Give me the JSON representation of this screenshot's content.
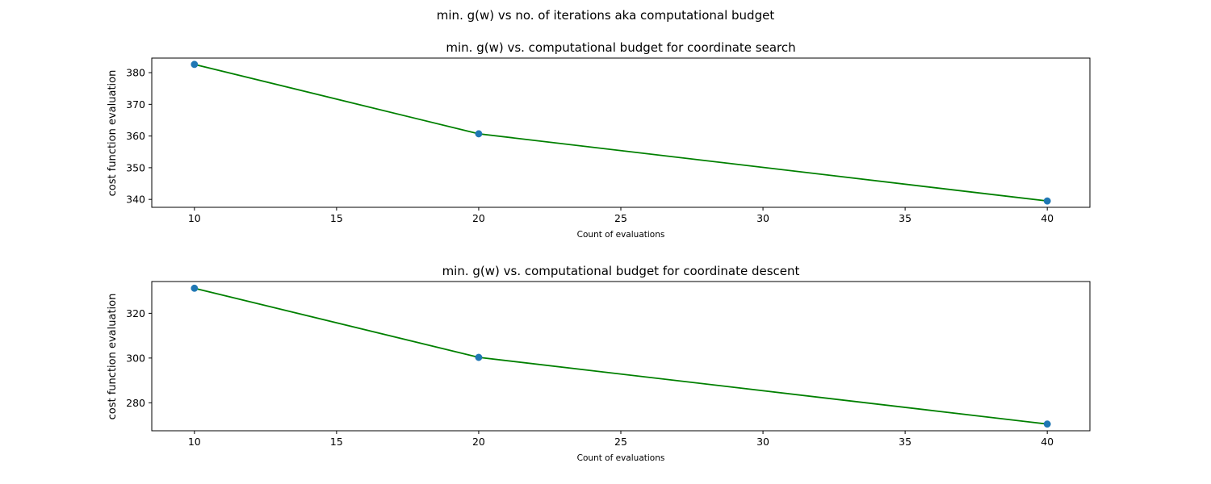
{
  "figure": {
    "suptitle": "min. g(w) vs no. of iterations aka computational budget"
  },
  "chart_data": [
    {
      "type": "line",
      "title": "min. g(w) vs. computational budget for coordinate search",
      "xlabel": "Count of evaluations",
      "ylabel": "cost function evaluation",
      "x": [
        10,
        20,
        40
      ],
      "y": [
        382.6,
        360.7,
        339.5
      ],
      "xlim": [
        8.5,
        41.5
      ],
      "ylim": [
        337.5,
        384.6
      ],
      "xticks": [
        10,
        15,
        20,
        25,
        30,
        35,
        40
      ],
      "yticks": [
        340,
        350,
        360,
        370,
        380
      ],
      "grid": false,
      "line_color": "#008000",
      "marker_color": "#1f77b4"
    },
    {
      "type": "line",
      "title": "min. g(w) vs. computational budget for coordinate descent",
      "xlabel": "Count of evaluations",
      "ylabel": "cost function evaluation",
      "x": [
        10,
        20,
        40
      ],
      "y": [
        331.2,
        300.3,
        270.5
      ],
      "xlim": [
        8.5,
        41.5
      ],
      "ylim": [
        267.5,
        334.2
      ],
      "xticks": [
        10,
        15,
        20,
        25,
        30,
        35,
        40
      ],
      "yticks": [
        280,
        300,
        320
      ],
      "grid": false,
      "line_color": "#008000",
      "marker_color": "#1f77b4"
    }
  ]
}
